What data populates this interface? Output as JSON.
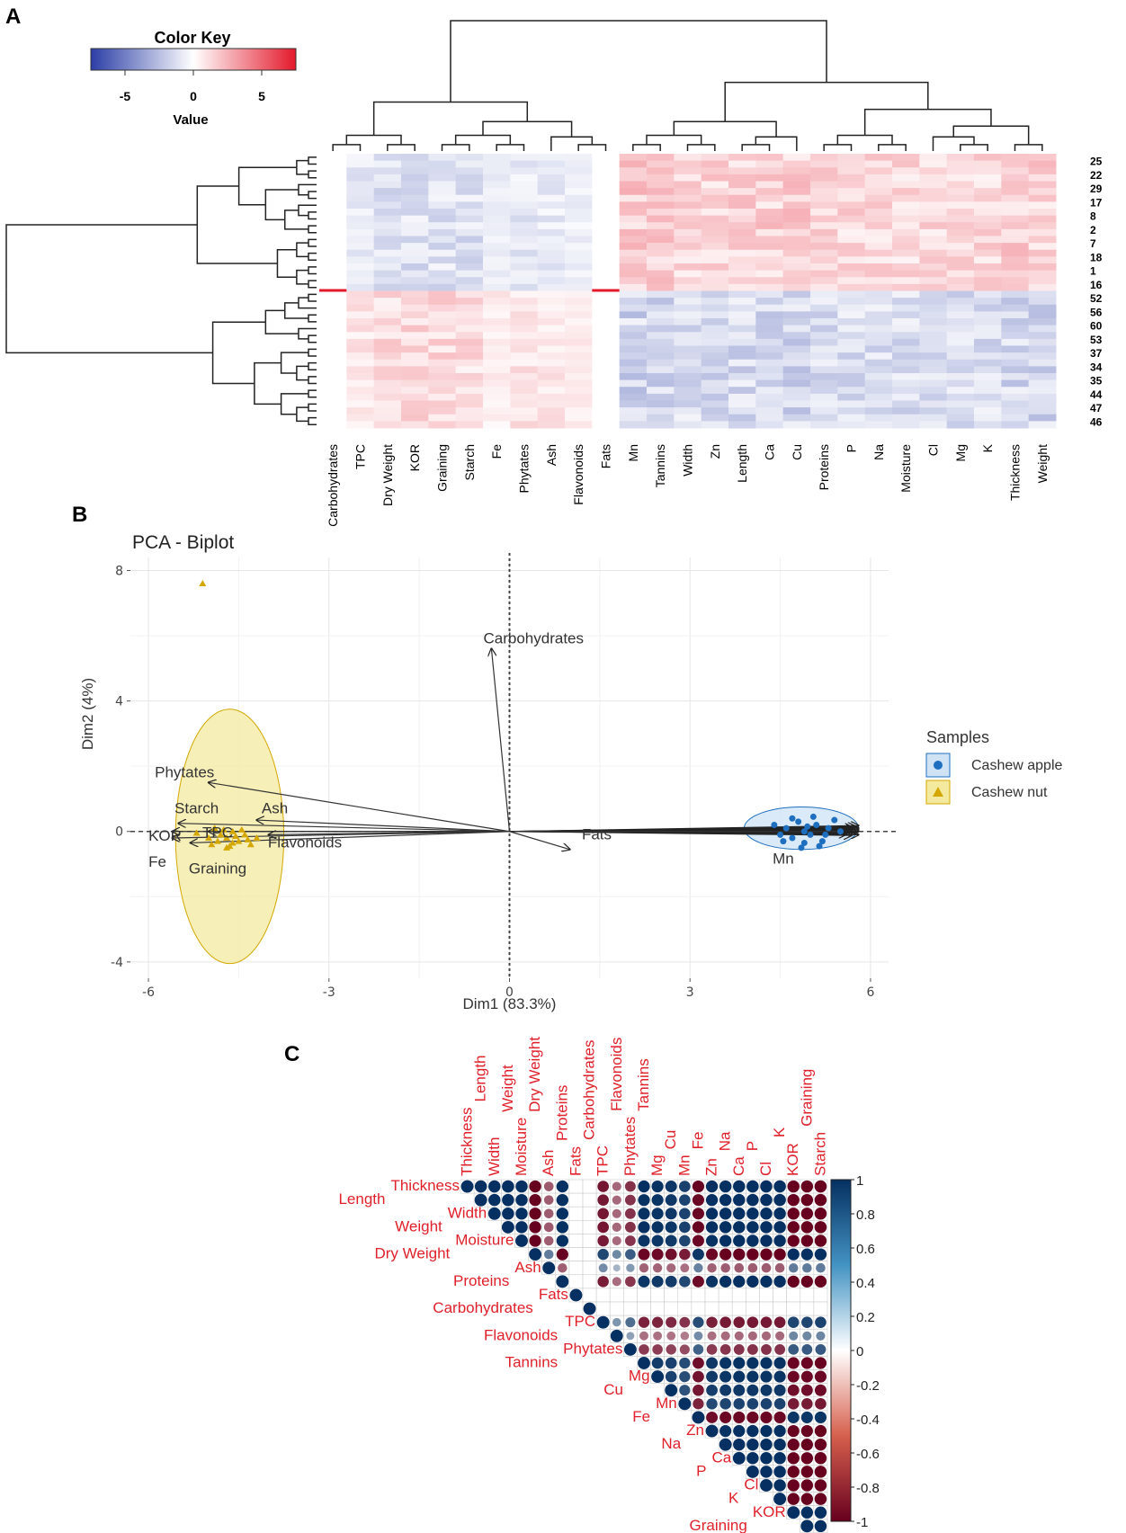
{
  "panels": {
    "a": "A",
    "b": "B",
    "c": "C"
  },
  "chart_data": [
    {
      "type": "heatmap",
      "panel": "A",
      "color_key": {
        "title": "Color Key",
        "xlabel": "Value",
        "ticks": [
          "-5",
          "0",
          "5"
        ],
        "range": [
          -7.5,
          7.5
        ],
        "low_color": "#2b3ea6",
        "mid_color": "#ffffff",
        "high_color": "#e3192b"
      },
      "columns": [
        "Carbohydrates",
        "TPC",
        "Dry Weight",
        "KOR",
        "Graining",
        "Starch",
        "Fe",
        "Phytates",
        "Ash",
        "Flavonoids",
        "Fats",
        "Mn",
        "Tannins",
        "Width",
        "Zn",
        "Length",
        "Ca",
        "Cu",
        "Proteins",
        "P",
        "Na",
        "Moisture",
        "Cl",
        "Mg",
        "K",
        "Thickness",
        "Weight"
      ],
      "column_mean_cluster1": [
        0.1,
        -0.9,
        -1.2,
        -1.2,
        -1.2,
        -1.2,
        -0.6,
        -0.9,
        -0.8,
        -0.6,
        0.1,
        1.6,
        1.5,
        1.3,
        1.4,
        1.4,
        1.5,
        1.5,
        1.3,
        1.3,
        1.3,
        1.3,
        1.3,
        1.3,
        1.3,
        1.5,
        1.5
      ],
      "row_labels": [
        "25",
        "22",
        "29",
        "17",
        "8",
        "2",
        "7",
        "18",
        "1",
        "16",
        "52",
        "56",
        "60",
        "53",
        "37",
        "34",
        "35",
        "44",
        "47",
        "46"
      ],
      "n_rows": 40,
      "cluster1_rows": 20
    },
    {
      "type": "scatter",
      "panel": "B",
      "title": "PCA - Biplot",
      "xlabel": "Dim1 (83.3%)",
      "ylabel": "Dim2 (4%)",
      "xlim": [
        -6.3,
        6.3
      ],
      "ylim": [
        -4.5,
        8.4
      ],
      "xticks": [
        -6,
        -3,
        0,
        3,
        6
      ],
      "xtick_labels": [
        "-6",
        "-3",
        "0",
        "3",
        "6"
      ],
      "yticks": [
        8,
        4,
        0,
        -4
      ],
      "ytick_labels": [
        "8",
        "4",
        "0",
        "-4"
      ],
      "legend": {
        "title": "Samples",
        "position": "right"
      },
      "series": [
        {
          "name": "Cashew apple",
          "marker": "circle",
          "color": "#1f6fc0",
          "fill": "#cfe3f5",
          "ellipse": {
            "cx": 4.85,
            "cy": 0.1,
            "rx": 0.95,
            "ry": 0.65
          },
          "points": [
            [
              4.4,
              0.2
            ],
            [
              4.6,
              0.1
            ],
            [
              4.7,
              -0.2
            ],
            [
              4.8,
              0.3
            ],
            [
              4.9,
              0.0
            ],
            [
              5.0,
              -0.1
            ],
            [
              5.1,
              0.2
            ],
            [
              5.2,
              -0.3
            ],
            [
              4.5,
              -0.1
            ],
            [
              4.9,
              -0.35
            ],
            [
              5.3,
              0.1
            ],
            [
              5.4,
              0.35
            ],
            [
              4.7,
              0.4
            ],
            [
              5.05,
              0.45
            ],
            [
              4.55,
              -0.3
            ],
            [
              5.25,
              -0.1
            ],
            [
              4.85,
              -0.5
            ],
            [
              5.5,
              0.0
            ],
            [
              4.95,
              0.15
            ],
            [
              5.15,
              -0.45
            ]
          ]
        },
        {
          "name": "Cashew nut",
          "marker": "triangle",
          "color": "#d4a800",
          "fill": "#f3eaa0",
          "ellipse": {
            "cx": -4.65,
            "cy": -0.15,
            "rx": 0.9,
            "ry": 3.9
          },
          "points": [
            [
              -5.1,
              7.6
            ],
            [
              -4.9,
              0.1
            ],
            [
              -4.7,
              -0.2
            ],
            [
              -4.6,
              0.0
            ],
            [
              -4.5,
              -0.3
            ],
            [
              -4.8,
              -0.1
            ],
            [
              -5.0,
              -0.2
            ],
            [
              -4.4,
              -0.1
            ],
            [
              -4.3,
              -0.4
            ],
            [
              -4.6,
              -0.35
            ],
            [
              -4.75,
              0.05
            ],
            [
              -4.85,
              -0.3
            ],
            [
              -4.55,
              -0.15
            ],
            [
              -4.35,
              -0.25
            ],
            [
              -5.2,
              -0.05
            ],
            [
              -4.65,
              -0.45
            ],
            [
              -4.45,
              0.05
            ],
            [
              -4.95,
              -0.4
            ],
            [
              -4.2,
              -0.2
            ],
            [
              -4.7,
              -0.5
            ]
          ]
        }
      ],
      "variable_arrows": [
        {
          "label": "Carbohydrates",
          "x": -0.3,
          "y": 5.6,
          "lx": 0.4,
          "ly": 5.9
        },
        {
          "label": "Phytates",
          "x": -5.0,
          "y": 1.5,
          "lx": -5.4,
          "ly": 1.8
        },
        {
          "label": "Starch",
          "x": -5.5,
          "y": 0.25,
          "lx": -5.2,
          "ly": 0.7
        },
        {
          "label": "Ash",
          "x": -4.2,
          "y": 0.35,
          "lx": -3.9,
          "ly": 0.7
        },
        {
          "label": "KOR",
          "x": -5.6,
          "y": 0.0,
          "lx": -6.0,
          "ly": -0.15
        },
        {
          "label": "TPC",
          "x": -5.0,
          "y": 0.0,
          "lx": -4.85,
          "ly": -0.05
        },
        {
          "label": "Flavonoids",
          "x": -4.0,
          "y": -0.1,
          "lx": -3.4,
          "ly": -0.35
        },
        {
          "label": "Fe",
          "x": -5.6,
          "y": -0.2,
          "lx": -6.0,
          "ly": -0.95
        },
        {
          "label": "Graining",
          "x": -5.3,
          "y": -0.35,
          "lx": -4.85,
          "ly": -1.15
        },
        {
          "label": "Fats",
          "x": 1.0,
          "y": -0.55,
          "lx": 1.45,
          "ly": -0.1
        },
        {
          "label": "Mn",
          "x": 5.5,
          "y": 0.0,
          "lx": 4.55,
          "ly": -0.85
        }
      ],
      "unlabeled_arrows": [
        [
          5.8,
          0.1
        ],
        [
          5.8,
          0.05
        ],
        [
          5.75,
          -0.05
        ],
        [
          5.7,
          0.12
        ],
        [
          5.8,
          -0.1
        ],
        [
          5.65,
          0.0
        ],
        [
          5.75,
          0.15
        ],
        [
          5.8,
          0.0
        ],
        [
          5.6,
          -0.08
        ],
        [
          5.7,
          0.05
        ],
        [
          5.78,
          -0.02
        ],
        [
          5.72,
          0.08
        ],
        [
          5.68,
          -0.12
        ],
        [
          5.8,
          0.18
        ],
        [
          5.62,
          0.03
        ]
      ]
    },
    {
      "type": "heatmap",
      "subtype": "correlation-upper-triangle",
      "panel": "C",
      "variables": [
        "Thickness",
        "Length",
        "Width",
        "Weight",
        "Moisture",
        "Dry Weight",
        "Ash",
        "Proteins",
        "Fats",
        "Carbohydrates",
        "TPC",
        "Flavonoids",
        "Phytates",
        "Tannins",
        "Mg",
        "Cu",
        "Mn",
        "Fe",
        "Zn",
        "Na",
        "Ca",
        "P",
        "Cl",
        "K",
        "KOR",
        "Graining",
        "Starch"
      ],
      "loadings": [
        0.98,
        0.97,
        0.97,
        0.98,
        0.96,
        -0.95,
        -0.6,
        0.95,
        0,
        0,
        -0.85,
        -0.55,
        -0.75,
        0.93,
        0.92,
        0.9,
        0.85,
        -0.92,
        0.94,
        0.96,
        0.97,
        0.97,
        0.97,
        0.97,
        -0.96,
        -0.96,
        -0.97
      ],
      "colorbar_ticks": [
        "1",
        "0.8",
        "0.6",
        "0.4",
        "0.2",
        "0",
        "-0.2",
        "-0.4",
        "-0.6",
        "-0.8",
        "-1"
      ],
      "range": [
        -1,
        1
      ],
      "positive_color": "#053061",
      "negative_color": "#67001f"
    }
  ]
}
